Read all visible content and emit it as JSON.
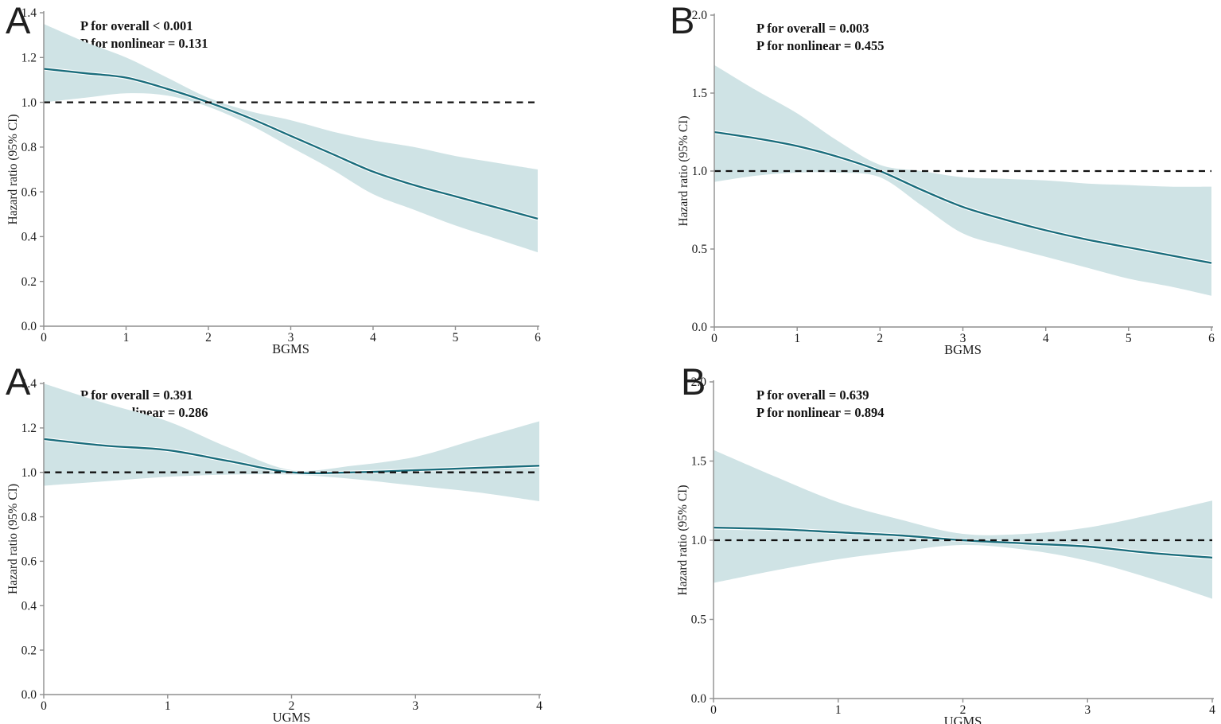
{
  "figure": {
    "background": "#ffffff",
    "band_color": "#cfe3e5",
    "line_color": "#1a6d7c",
    "halo_color": "#ffffff",
    "dash_color": "#111111",
    "axis_color": "#8f8f8f",
    "text_color": "#1a1a1a"
  },
  "chart_data": [
    {
      "id": "panel-A-BGMS",
      "type": "area",
      "panel_letter": "A",
      "annotation": "P for overall < 0.001\nP for nonlinear = 0.131",
      "xlabel": "BGMS",
      "ylabel": "Hazard ratio (95% CI)",
      "xlim": [
        0,
        6
      ],
      "ylim": [
        0,
        1.4
      ],
      "x_ticks": [
        "0",
        "1",
        "2",
        "3",
        "4",
        "5",
        "6"
      ],
      "y_ticks": [
        "1.4",
        "1.2",
        "1.0",
        "0.8",
        "0.6",
        "0.4",
        "0.2",
        "0.0"
      ],
      "reference_line": 1.0,
      "grid": false,
      "legend": "none",
      "x": [
        0,
        0.5,
        1,
        1.5,
        2,
        2.5,
        3,
        3.5,
        4,
        4.5,
        5,
        5.5,
        6
      ],
      "series": [
        {
          "name": "hazard_ratio",
          "values": [
            1.15,
            1.13,
            1.11,
            1.06,
            1.0,
            0.93,
            0.85,
            0.77,
            0.69,
            0.63,
            0.58,
            0.53,
            0.48
          ]
        },
        {
          "name": "ci_lower",
          "values": [
            1.0,
            1.02,
            1.04,
            1.03,
            0.98,
            0.9,
            0.8,
            0.7,
            0.59,
            0.52,
            0.45,
            0.39,
            0.33
          ]
        },
        {
          "name": "ci_upper",
          "values": [
            1.35,
            1.27,
            1.2,
            1.11,
            1.02,
            0.96,
            0.92,
            0.87,
            0.83,
            0.8,
            0.76,
            0.73,
            0.7
          ]
        }
      ]
    },
    {
      "id": "panel-B-BGMS",
      "type": "area",
      "panel_letter": "B",
      "annotation": "P for overall = 0.003\nP for nonlinear = 0.455",
      "xlabel": "BGMS",
      "ylabel": "Hazard ratio (95% CI)",
      "xlim": [
        0,
        6
      ],
      "ylim": [
        0,
        2.0
      ],
      "x_ticks": [
        "0",
        "1",
        "2",
        "3",
        "4",
        "5",
        "6"
      ],
      "y_ticks": [
        "2.0",
        "1.5",
        "1.0",
        "0.5",
        "0.0"
      ],
      "reference_line": 1.0,
      "grid": false,
      "legend": "none",
      "x": [
        0,
        0.5,
        1,
        1.5,
        2,
        2.5,
        3,
        3.5,
        4,
        4.5,
        5,
        5.5,
        6
      ],
      "series": [
        {
          "name": "hazard_ratio",
          "values": [
            1.25,
            1.21,
            1.16,
            1.09,
            1.0,
            0.88,
            0.77,
            0.69,
            0.62,
            0.56,
            0.51,
            0.46,
            0.41
          ]
        },
        {
          "name": "ci_lower",
          "values": [
            0.93,
            0.97,
            0.99,
            0.99,
            0.96,
            0.78,
            0.6,
            0.52,
            0.45,
            0.38,
            0.31,
            0.26,
            0.2
          ]
        },
        {
          "name": "ci_upper",
          "values": [
            1.68,
            1.52,
            1.37,
            1.19,
            1.04,
            1.0,
            0.96,
            0.95,
            0.94,
            0.92,
            0.91,
            0.9,
            0.9
          ]
        }
      ]
    },
    {
      "id": "panel-A-UGMS",
      "type": "area",
      "panel_letter": "A",
      "annotation": "P for overall = 0.391\nP for nonlinear = 0.286",
      "xlabel": "UGMS",
      "ylabel": "Hazard ratio (95% CI)",
      "xlim": [
        0,
        4
      ],
      "ylim": [
        0,
        1.4
      ],
      "x_ticks": [
        "0",
        "1",
        "2",
        "3",
        "4"
      ],
      "y_ticks": [
        "1.4",
        "1.2",
        "1.0",
        "0.8",
        "0.6",
        "0.4",
        "0.2",
        "0.0"
      ],
      "reference_line": 1.0,
      "grid": false,
      "legend": "none",
      "x": [
        0,
        0.5,
        1,
        1.5,
        2,
        2.5,
        3,
        3.5,
        4
      ],
      "series": [
        {
          "name": "hazard_ratio",
          "values": [
            1.15,
            1.12,
            1.1,
            1.05,
            1.0,
            1.0,
            1.01,
            1.02,
            1.03
          ]
        },
        {
          "name": "ci_lower",
          "values": [
            0.94,
            0.96,
            0.98,
            0.99,
            0.99,
            0.97,
            0.94,
            0.91,
            0.87
          ]
        },
        {
          "name": "ci_upper",
          "values": [
            1.4,
            1.31,
            1.23,
            1.11,
            1.01,
            1.03,
            1.07,
            1.15,
            1.23
          ]
        }
      ]
    },
    {
      "id": "panel-B-UGMS",
      "type": "area",
      "panel_letter": "B",
      "annotation": "P for overall = 0.639\nP for nonlinear = 0.894",
      "xlabel": "UGMS",
      "ylabel": "Hazard ratio (95% CI)",
      "xlim": [
        0,
        4
      ],
      "ylim": [
        0,
        2.0
      ],
      "x_ticks": [
        "0",
        "1",
        "2",
        "3",
        "4"
      ],
      "y_ticks": [
        "2.0",
        "1.5",
        "1.0",
        "0.5",
        "0.0"
      ],
      "reference_line": 1.0,
      "grid": false,
      "legend": "none",
      "x": [
        0,
        0.5,
        1,
        1.5,
        2,
        2.5,
        3,
        3.5,
        4
      ],
      "series": [
        {
          "name": "hazard_ratio",
          "values": [
            1.08,
            1.07,
            1.05,
            1.03,
            1.0,
            0.98,
            0.96,
            0.92,
            0.89
          ]
        },
        {
          "name": "ci_lower",
          "values": [
            0.73,
            0.81,
            0.88,
            0.93,
            0.97,
            0.94,
            0.87,
            0.76,
            0.63
          ]
        },
        {
          "name": "ci_upper",
          "values": [
            1.57,
            1.4,
            1.24,
            1.13,
            1.04,
            1.04,
            1.08,
            1.16,
            1.25
          ]
        }
      ]
    }
  ]
}
